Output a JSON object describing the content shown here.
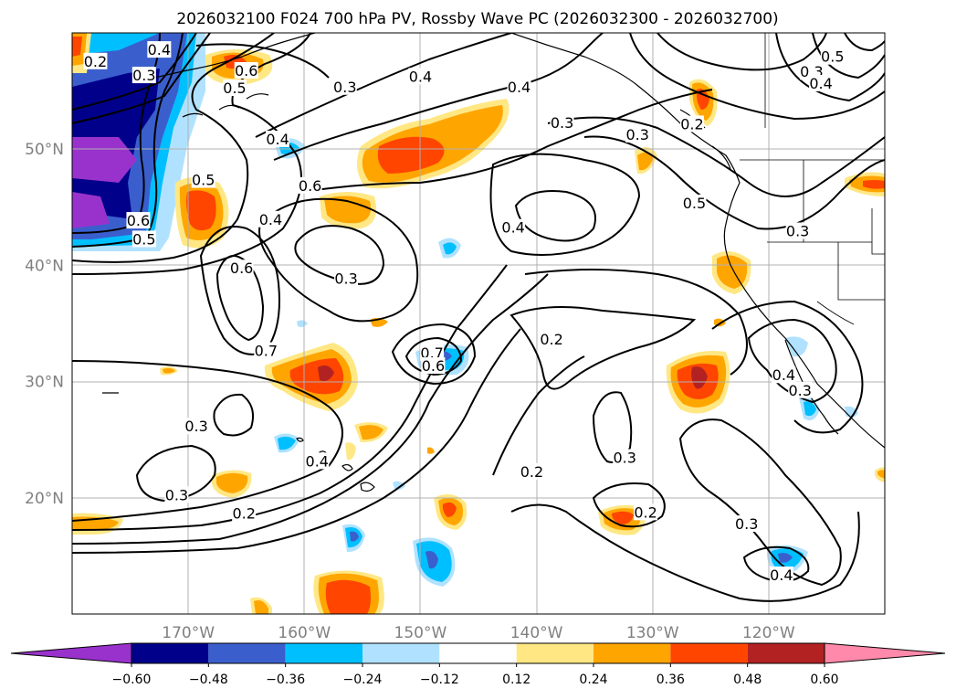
{
  "title": "2026032100 F024 700 hPa PV, Rossby Wave PC (2026032300 - 2026032700)",
  "map": {
    "lon_range": [
      -180,
      -110
    ],
    "lat_range": [
      10,
      60
    ],
    "lon_ticks": [
      {
        "lon": -170,
        "label": "170°W"
      },
      {
        "lon": -160,
        "label": "160°W"
      },
      {
        "lon": -150,
        "label": "150°W"
      },
      {
        "lon": -140,
        "label": "140°W"
      },
      {
        "lon": -130,
        "label": "130°W"
      },
      {
        "lon": -120,
        "label": "120°W"
      }
    ],
    "lat_ticks": [
      {
        "lat": 50,
        "label": "50°N"
      },
      {
        "lat": 40,
        "label": "40°N"
      },
      {
        "lat": 30,
        "label": "30°N"
      },
      {
        "lat": 20,
        "label": "20°N"
      }
    ]
  },
  "colorbar": {
    "levels": [
      "−0.60",
      "−0.48",
      "−0.36",
      "−0.24",
      "−0.12",
      "0.12",
      "0.24",
      "0.36",
      "0.48",
      "0.60"
    ],
    "colors": [
      "#9932cc",
      "#00008b",
      "#3a5fcd",
      "#00bfff",
      "#b0e2ff",
      "#ffffff",
      "#ffe784",
      "#ffa500",
      "#ff4500",
      "#b22222",
      "#ff89aa"
    ]
  },
  "contour_labels": [
    {
      "lon": -172.5,
      "lat": 58.5,
      "text": "0.4"
    },
    {
      "lon": -178,
      "lat": 57.5,
      "text": "0.2"
    },
    {
      "lon": -173.8,
      "lat": 56.3,
      "text": "0.3"
    },
    {
      "lon": -165,
      "lat": 56.7,
      "text": "0.6"
    },
    {
      "lon": -166,
      "lat": 55.2,
      "text": "0.5"
    },
    {
      "lon": -156.5,
      "lat": 55.3,
      "text": "0.3"
    },
    {
      "lon": -150,
      "lat": 56.2,
      "text": "0.4"
    },
    {
      "lon": -141.5,
      "lat": 55.3,
      "text": "0.4"
    },
    {
      "lon": -137.8,
      "lat": 52.2,
      "text": "0.3"
    },
    {
      "lon": -131.3,
      "lat": 51.2,
      "text": "0.3"
    },
    {
      "lon": -126.6,
      "lat": 52.1,
      "text": "0.2"
    },
    {
      "lon": -114.5,
      "lat": 57.9,
      "text": "0.5"
    },
    {
      "lon": -116.3,
      "lat": 56.6,
      "text": "0.3"
    },
    {
      "lon": -115.5,
      "lat": 55.6,
      "text": "0.4"
    },
    {
      "lon": -162.3,
      "lat": 50.8,
      "text": "0.4"
    },
    {
      "lon": -159.5,
      "lat": 46.8,
      "text": "0.6"
    },
    {
      "lon": -168.7,
      "lat": 47.3,
      "text": "0.5"
    },
    {
      "lon": -162.9,
      "lat": 43.9,
      "text": "0.4"
    },
    {
      "lon": -174.3,
      "lat": 43.8,
      "text": "0.6"
    },
    {
      "lon": -173.8,
      "lat": 42.2,
      "text": "0.5"
    },
    {
      "lon": -165.4,
      "lat": 39.7,
      "text": "0.6"
    },
    {
      "lon": -156.4,
      "lat": 38.8,
      "text": "0.3"
    },
    {
      "lon": -142,
      "lat": 43.2,
      "text": "0.4"
    },
    {
      "lon": -126.4,
      "lat": 45.3,
      "text": "0.5"
    },
    {
      "lon": -117.5,
      "lat": 42.9,
      "text": "0.3"
    },
    {
      "lon": -163.3,
      "lat": 32.6,
      "text": "0.7"
    },
    {
      "lon": -149,
      "lat": 32.4,
      "text": "0.7"
    },
    {
      "lon": -148.9,
      "lat": 31.3,
      "text": "0.6"
    },
    {
      "lon": -138.7,
      "lat": 33.6,
      "text": "0.2"
    },
    {
      "lon": -118.7,
      "lat": 30.5,
      "text": "0.4"
    },
    {
      "lon": -117.3,
      "lat": 29.2,
      "text": "0.3"
    },
    {
      "lon": -169.3,
      "lat": 26.1,
      "text": "0.3"
    },
    {
      "lon": -158.9,
      "lat": 23.1,
      "text": "0.4"
    },
    {
      "lon": -140.4,
      "lat": 22.2,
      "text": "0.2"
    },
    {
      "lon": -132.4,
      "lat": 23.4,
      "text": "0.3"
    },
    {
      "lon": -171,
      "lat": 20.2,
      "text": "0.3"
    },
    {
      "lon": -165.2,
      "lat": 18.6,
      "text": "0.2"
    },
    {
      "lon": -130.6,
      "lat": 18.7,
      "text": "0.2"
    },
    {
      "lon": -121.9,
      "lat": 17.7,
      "text": "0.3"
    },
    {
      "lon": -118.9,
      "lat": 13.3,
      "text": "0.4"
    }
  ]
}
